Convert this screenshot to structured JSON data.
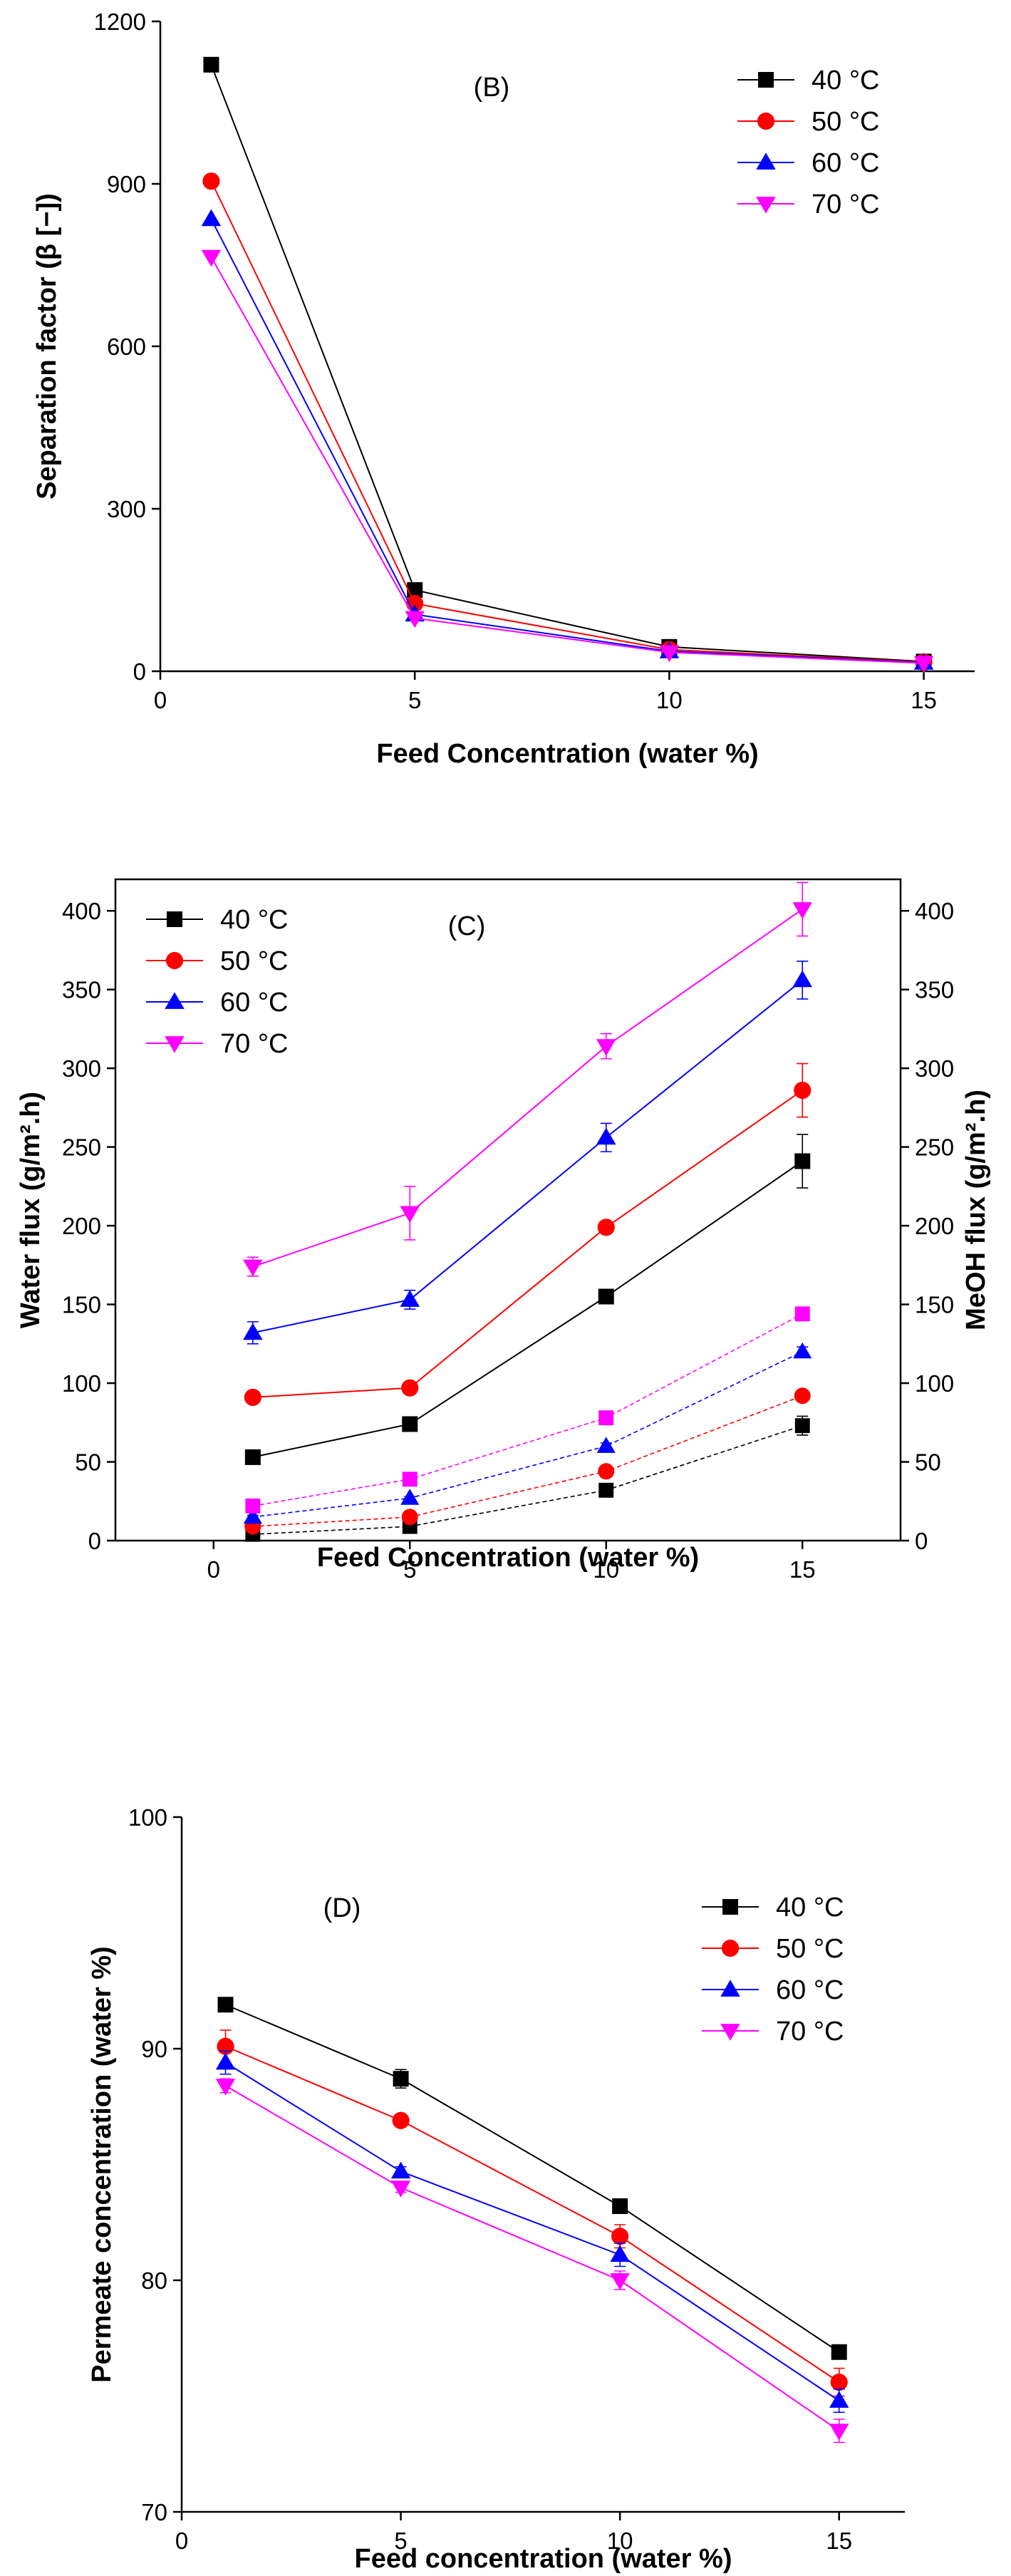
{
  "chart_data": [
    {
      "type": "line",
      "panel_label": "(B)",
      "xlabel": "Feed Concentration (water %)",
      "ylabel": "Separation factor (β [−])",
      "xlim": [
        0,
        16
      ],
      "ylim": [
        0,
        1200
      ],
      "xticks": [
        0,
        5,
        10,
        15
      ],
      "yticks": [
        0,
        300,
        600,
        900,
        1200
      ],
      "x": [
        1,
        5,
        10,
        15
      ],
      "legend_position": "top-right",
      "series": [
        {
          "name": "40 °C",
          "color": "#000000",
          "marker": "square",
          "values": [
            1120,
            150,
            45,
            18
          ]
        },
        {
          "name": "50 °C",
          "color": "#ff0000",
          "marker": "circle",
          "values": [
            905,
            125,
            40,
            17
          ]
        },
        {
          "name": "60 °C",
          "color": "#0000ff",
          "marker": "triangle-up",
          "values": [
            835,
            105,
            37,
            16
          ]
        },
        {
          "name": "70 °C",
          "color": "#ff00ff",
          "marker": "triangle-down",
          "values": [
            765,
            98,
            35,
            15
          ]
        }
      ]
    },
    {
      "type": "line",
      "panel_label": "(C)",
      "xlabel": "Feed Concentration (water %)",
      "ylabel": "Water flux (g/m².h)",
      "ylabel_right": "MeOH flux (g/m².h)",
      "xlim": [
        -2.5,
        17.5
      ],
      "ylim": [
        0,
        420
      ],
      "xticks": [
        0,
        5,
        10,
        15
      ],
      "yticks": [
        0,
        50,
        100,
        150,
        200,
        250,
        300,
        350,
        400
      ],
      "x": [
        1,
        5,
        10,
        15
      ],
      "legend_position": "top-left",
      "series": [
        {
          "name": "40 °C",
          "color": "#000000",
          "marker": "square",
          "values": [
            53,
            74,
            155,
            241
          ],
          "errors": [
            4,
            3,
            3,
            17
          ]
        },
        {
          "name": "50 °C",
          "color": "#ff0000",
          "marker": "circle",
          "values": [
            91,
            97,
            199,
            286
          ],
          "errors": [
            2,
            2,
            2,
            17
          ]
        },
        {
          "name": "60 °C",
          "color": "#0000ff",
          "marker": "triangle-up",
          "values": [
            132,
            153,
            256,
            356
          ],
          "errors": [
            7,
            6,
            9,
            12
          ]
        },
        {
          "name": "70 °C",
          "color": "#ff00ff",
          "marker": "triangle-down",
          "values": [
            174,
            208,
            314,
            401
          ],
          "errors": [
            6,
            17,
            8,
            17
          ]
        }
      ],
      "meoh_series": [
        {
          "name": "40 °C MeOH",
          "color": "#000000",
          "marker": "square",
          "values": [
            4,
            9,
            32,
            73
          ],
          "errors": [
            1,
            1,
            2,
            6
          ]
        },
        {
          "name": "50 °C MeOH",
          "color": "#ff0000",
          "marker": "circle",
          "values": [
            9,
            15,
            44,
            92
          ],
          "errors": [
            1,
            1,
            2,
            2
          ]
        },
        {
          "name": "60 °C MeOH",
          "color": "#0000ff",
          "marker": "triangle-up",
          "values": [
            15,
            27,
            60,
            120
          ],
          "errors": [
            1,
            1,
            2,
            3
          ]
        },
        {
          "name": "70 °C MeOH",
          "color": "#ff00ff",
          "marker": "square",
          "values": [
            22,
            39,
            78,
            144
          ],
          "errors": [
            1,
            1,
            2,
            2
          ]
        }
      ]
    },
    {
      "type": "line",
      "panel_label": "(D)",
      "xlabel": "Feed concentration (water %)",
      "ylabel": "Permeate concentration (water %)",
      "xlim": [
        0,
        16.5
      ],
      "ylim": [
        70,
        100
      ],
      "xticks": [
        0,
        5,
        10,
        15
      ],
      "yticks": [
        70,
        80,
        90,
        100
      ],
      "x": [
        1,
        5,
        10,
        15
      ],
      "legend_position": "top-right",
      "series": [
        {
          "name": "40 °C",
          "color": "#000000",
          "marker": "square",
          "values": [
            91.9,
            88.7,
            83.2,
            76.9
          ],
          "errors": [
            0.2,
            0.4,
            0.3,
            0.2
          ]
        },
        {
          "name": "50 °C",
          "color": "#ff0000",
          "marker": "circle",
          "values": [
            90.1,
            86.9,
            81.9,
            75.6
          ],
          "errors": [
            0.7,
            0.2,
            0.5,
            0.6
          ]
        },
        {
          "name": "60 °C",
          "color": "#0000ff",
          "marker": "triangle-up",
          "values": [
            89.4,
            84.7,
            81.1,
            74.8
          ],
          "errors": [
            0.5,
            0.2,
            0.5,
            0.5
          ]
        },
        {
          "name": "70 °C",
          "color": "#ff00ff",
          "marker": "triangle-down",
          "values": [
            88.4,
            84.0,
            80.0,
            73.5
          ],
          "errors": [
            0.3,
            0.2,
            0.4,
            0.5
          ]
        }
      ]
    }
  ]
}
